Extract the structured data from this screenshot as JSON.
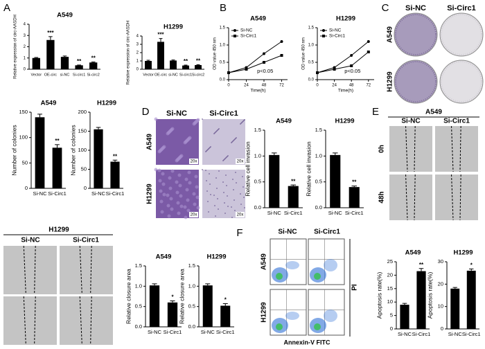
{
  "panel_labels": [
    "A",
    "B",
    "C",
    "D",
    "E",
    "F"
  ],
  "colony_images": {
    "columns": [
      "Si-NC",
      "Si-Circ1"
    ],
    "rows": [
      "A549",
      "H1299"
    ]
  },
  "invasion_images": {
    "columns": [
      "Si-NC",
      "Si-Circ1"
    ],
    "rows": [
      "A549",
      "H1299"
    ],
    "magnification": "20x"
  },
  "wound_a549": {
    "title": "A549",
    "columns": [
      "Si-NC",
      "Si-Circ1"
    ],
    "rows": [
      "0h",
      "48h"
    ]
  },
  "wound_h1299": {
    "title": "H1299",
    "columns": [
      "Si-NC",
      "Si-Circ1"
    ]
  },
  "flow": {
    "columns": [
      "Si-NC",
      "Si-Circ1"
    ],
    "rows": [
      "A549",
      "H1299"
    ],
    "x_label": "Annexin-V FITC",
    "y_label": "PI"
  },
  "chart_data": [
    {
      "type": "bar",
      "title": "A549",
      "y_label": "Relative expression of circ-AASDH",
      "color": "#000000",
      "categories": [
        "Vector",
        "OE-circ",
        "si-NC",
        "Si-circ1",
        "Si-circ2"
      ],
      "values": [
        1.0,
        2.6,
        1.1,
        0.35,
        0.6
      ],
      "errors": [
        0.05,
        0.3,
        0.08,
        0.03,
        0.05
      ],
      "significance": [
        null,
        "***",
        null,
        "**",
        "**"
      ],
      "ylim": [
        0,
        4
      ],
      "yticks": [
        0,
        1,
        2,
        3,
        4
      ]
    },
    {
      "type": "bar",
      "title": "H1299",
      "y_label": "Relative expression of circ-AASDH",
      "color": "#000000",
      "categories": [
        "Vector",
        "OE-circ",
        "si-NC",
        "Si-circ1",
        "Si-circ2"
      ],
      "values": [
        1.0,
        3.3,
        1.05,
        0.45,
        0.5
      ],
      "errors": [
        0.08,
        0.4,
        0.06,
        0.05,
        0.05
      ],
      "significance": [
        null,
        "***",
        null,
        "**",
        "**"
      ],
      "ylim": [
        0,
        4
      ],
      "yticks": [
        0,
        1,
        2,
        3,
        4
      ]
    },
    {
      "type": "line",
      "title": "A549",
      "x_label": "Time(h)",
      "y_label": "OD value 450 nm",
      "annotation": "p<0.05",
      "x": [
        0,
        24,
        48,
        72
      ],
      "xlim": [
        0,
        80
      ],
      "xticks": [
        0,
        24,
        48,
        72
      ],
      "ylim": [
        0,
        1.5
      ],
      "yticks": [
        {
          "value": 0,
          "label": "0.0"
        },
        {
          "value": 0.5,
          "label": "0.5"
        },
        {
          "value": 1.0,
          "label": "1.0"
        },
        {
          "value": 1.5,
          "label": "1.5"
        }
      ],
      "series": [
        {
          "name": "Si-NC",
          "color": "#000000",
          "marker": "circle",
          "values": [
            0.2,
            0.35,
            0.75,
            1.1
          ]
        },
        {
          "name": "Si-Circ1",
          "color": "#000000",
          "marker": "square",
          "values": [
            0.2,
            0.3,
            0.5,
            0.7
          ]
        }
      ]
    },
    {
      "type": "line",
      "title": "H1299",
      "x_label": "Time(h)",
      "y_label": "OD value 450 nm",
      "annotation": "p<0.05",
      "x": [
        0,
        24,
        48,
        72
      ],
      "xlim": [
        0,
        80
      ],
      "xticks": [
        0,
        24,
        48,
        72
      ],
      "ylim": [
        0,
        1.5
      ],
      "yticks": [
        {
          "value": 0,
          "label": "0.0"
        },
        {
          "value": 0.5,
          "label": "0.5"
        },
        {
          "value": 1.0,
          "label": "1.0"
        },
        {
          "value": 1.5,
          "label": "1.5"
        }
      ],
      "series": [
        {
          "name": "Si-NC",
          "color": "#000000",
          "marker": "circle",
          "values": [
            0.2,
            0.35,
            0.7,
            1.1
          ]
        },
        {
          "name": "Si-Circ1",
          "color": "#000000",
          "marker": "square",
          "values": [
            0.2,
            0.3,
            0.4,
            0.8
          ]
        }
      ]
    },
    {
      "type": "bar",
      "title": "A549",
      "y_label": "Number of colonies",
      "color": "#000000",
      "categories": [
        "Si-NC",
        "Si-Circ1"
      ],
      "values": [
        140,
        80
      ],
      "errors": [
        6,
        6
      ],
      "significance": [
        null,
        "**"
      ],
      "ylim": [
        0,
        150
      ],
      "yticks": [
        0,
        50,
        100,
        150
      ]
    },
    {
      "type": "bar",
      "title": "H1299",
      "y_label": "Number of colonies",
      "color": "#000000",
      "categories": [
        "Si-NC",
        "Si-Circ1"
      ],
      "values": [
        155,
        70
      ],
      "errors": [
        5,
        4
      ],
      "significance": [
        null,
        "**"
      ],
      "ylim": [
        0,
        200
      ],
      "yticks": [
        0,
        50,
        100,
        150,
        200
      ]
    },
    {
      "type": "bar",
      "title": "A549",
      "y_label": "Relative cell invasion",
      "color": "#000000",
      "categories": [
        "Si-NC",
        "Si-Circ1"
      ],
      "values": [
        1.02,
        0.42
      ],
      "errors": [
        0.04,
        0.02
      ],
      "significance": [
        null,
        "**"
      ],
      "ylim": [
        0,
        1.5
      ],
      "yticks": [
        {
          "value": 0,
          "label": "0.0"
        },
        {
          "value": 0.5,
          "label": "0.5"
        },
        {
          "value": 1.0,
          "label": "1.0"
        },
        {
          "value": 1.5,
          "label": "1.5"
        }
      ]
    },
    {
      "type": "bar",
      "title": "H1299",
      "y_label": "Relative cell invasion",
      "color": "#000000",
      "categories": [
        "Si-NC",
        "Si-Circ1"
      ],
      "values": [
        1.02,
        0.4
      ],
      "errors": [
        0.04,
        0.02
      ],
      "significance": [
        null,
        "**"
      ],
      "ylim": [
        0,
        1.5
      ],
      "yticks": [
        {
          "value": 0,
          "label": "0.0"
        },
        {
          "value": 0.5,
          "label": "0.5"
        },
        {
          "value": 1.0,
          "label": "1.0"
        },
        {
          "value": 1.5,
          "label": "1.5"
        }
      ]
    },
    {
      "type": "bar",
      "title": "A549",
      "y_label": "Relative closure area",
      "color": "#000000",
      "categories": [
        "Si-NC",
        "Si-Circ1"
      ],
      "values": [
        1.02,
        0.6
      ],
      "errors": [
        0.04,
        0.04
      ],
      "significance": [
        null,
        "*"
      ],
      "ylim": [
        0,
        1.5
      ],
      "yticks": [
        {
          "value": 0,
          "label": "0.0"
        },
        {
          "value": 0.5,
          "label": "0.5"
        },
        {
          "value": 1.0,
          "label": "1.0"
        },
        {
          "value": 1.5,
          "label": "1.5"
        }
      ]
    },
    {
      "type": "bar",
      "title": "H1299",
      "y_label": "Relative closure area",
      "color": "#000000",
      "categories": [
        "Si-NC",
        "Si-Circ1"
      ],
      "values": [
        1.02,
        0.52
      ],
      "errors": [
        0.04,
        0.05
      ],
      "significance": [
        null,
        "*"
      ],
      "ylim": [
        0,
        1.5
      ],
      "yticks": [
        {
          "value": 0,
          "label": "0.0"
        },
        {
          "value": 0.5,
          "label": "0.5"
        },
        {
          "value": 1.0,
          "label": "1.0"
        },
        {
          "value": 1.5,
          "label": "1.5"
        }
      ]
    },
    {
      "type": "bar",
      "title": "A549",
      "y_label": "Apoptosis rate(%)",
      "color": "#000000",
      "categories": [
        "Si-NC",
        "Si-Circ1"
      ],
      "values": [
        9,
        21.5
      ],
      "errors": [
        0.5,
        1
      ],
      "significance": [
        null,
        "**"
      ],
      "ylim": [
        0,
        25
      ],
      "yticks": [
        0,
        5,
        10,
        15,
        20,
        25
      ]
    },
    {
      "type": "bar",
      "title": "H1299",
      "y_label": "Apoptosis rate(%)",
      "color": "#000000",
      "categories": [
        "Si-NC",
        "Si-Circ1"
      ],
      "values": [
        18,
        26
      ],
      "errors": [
        0.5,
        0.8
      ],
      "significance": [
        null,
        "*"
      ],
      "ylim": [
        0,
        30
      ],
      "yticks": [
        0,
        10,
        20,
        30
      ]
    }
  ]
}
